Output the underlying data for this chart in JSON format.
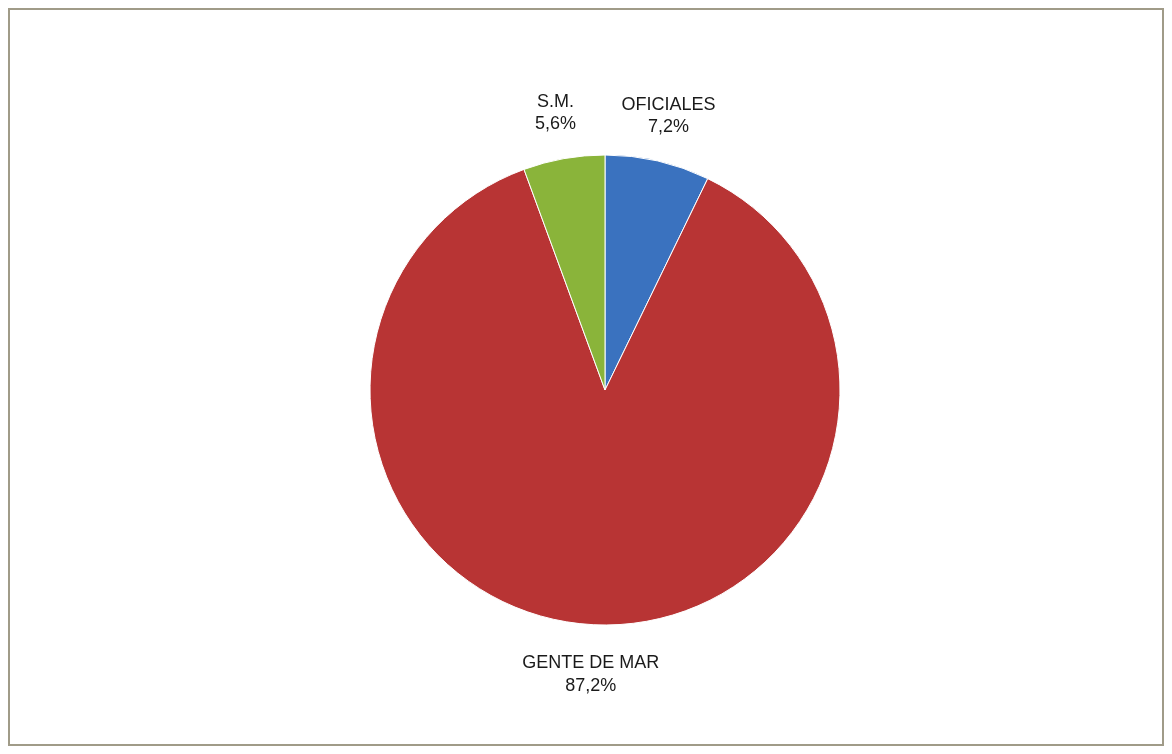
{
  "chart_data": {
    "type": "pie",
    "categories": [
      "OFICIALES",
      "GENTE DE MAR",
      "S.M."
    ],
    "values": [
      7.2,
      87.2,
      5.6
    ],
    "value_labels": [
      "7,2%",
      "87,2%",
      "5,6%"
    ],
    "colors": [
      "#3a72bf",
      "#b83434",
      "#8ab43a"
    ]
  }
}
